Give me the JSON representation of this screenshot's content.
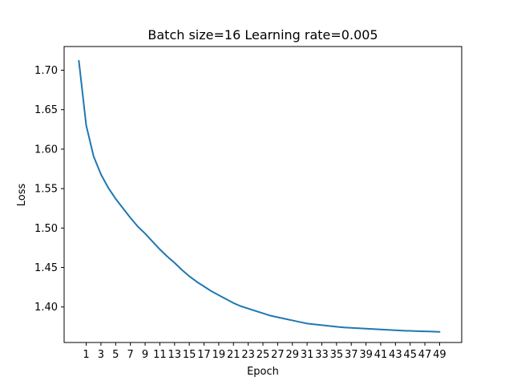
{
  "chart_data": {
    "type": "line",
    "title": "Batch size=16 Learning rate=0.005",
    "xlabel": "Epoch",
    "ylabel": "Loss",
    "xlim": [
      -2,
      52
    ],
    "ylim": [
      1.355,
      1.73
    ],
    "grid": false,
    "x_ticks": [
      1,
      3,
      5,
      7,
      9,
      11,
      13,
      15,
      17,
      19,
      21,
      23,
      25,
      27,
      29,
      31,
      33,
      35,
      37,
      39,
      41,
      43,
      45,
      47,
      49
    ],
    "y_ticks": [
      1.4,
      1.45,
      1.5,
      1.55,
      1.6,
      1.65,
      1.7
    ],
    "y_tick_labels": [
      "1.40",
      "1.45",
      "1.50",
      "1.55",
      "1.60",
      "1.65",
      "1.70"
    ],
    "series": [
      {
        "color": "#1f77b4",
        "x": [
          0,
          1,
          2,
          3,
          4,
          5,
          6,
          7,
          8,
          9,
          10,
          11,
          12,
          13,
          14,
          15,
          16,
          17,
          18,
          19,
          20,
          21,
          22,
          23,
          24,
          25,
          26,
          27,
          28,
          29,
          30,
          31,
          32,
          33,
          34,
          35,
          36,
          37,
          38,
          39,
          40,
          41,
          42,
          43,
          44,
          45,
          46,
          47,
          48,
          49
        ],
        "y": [
          1.712,
          1.63,
          1.591,
          1.568,
          1.551,
          1.537,
          1.525,
          1.513,
          1.502,
          1.493,
          1.483,
          1.473,
          1.464,
          1.456,
          1.447,
          1.439,
          1.432,
          1.426,
          1.42,
          1.415,
          1.41,
          1.405,
          1.401,
          1.398,
          1.395,
          1.392,
          1.389,
          1.387,
          1.385,
          1.383,
          1.381,
          1.379,
          1.378,
          1.377,
          1.376,
          1.375,
          1.374,
          1.3735,
          1.373,
          1.3725,
          1.372,
          1.3715,
          1.371,
          1.3705,
          1.37,
          1.3697,
          1.3694,
          1.3691,
          1.3688,
          1.3685
        ]
      }
    ]
  }
}
